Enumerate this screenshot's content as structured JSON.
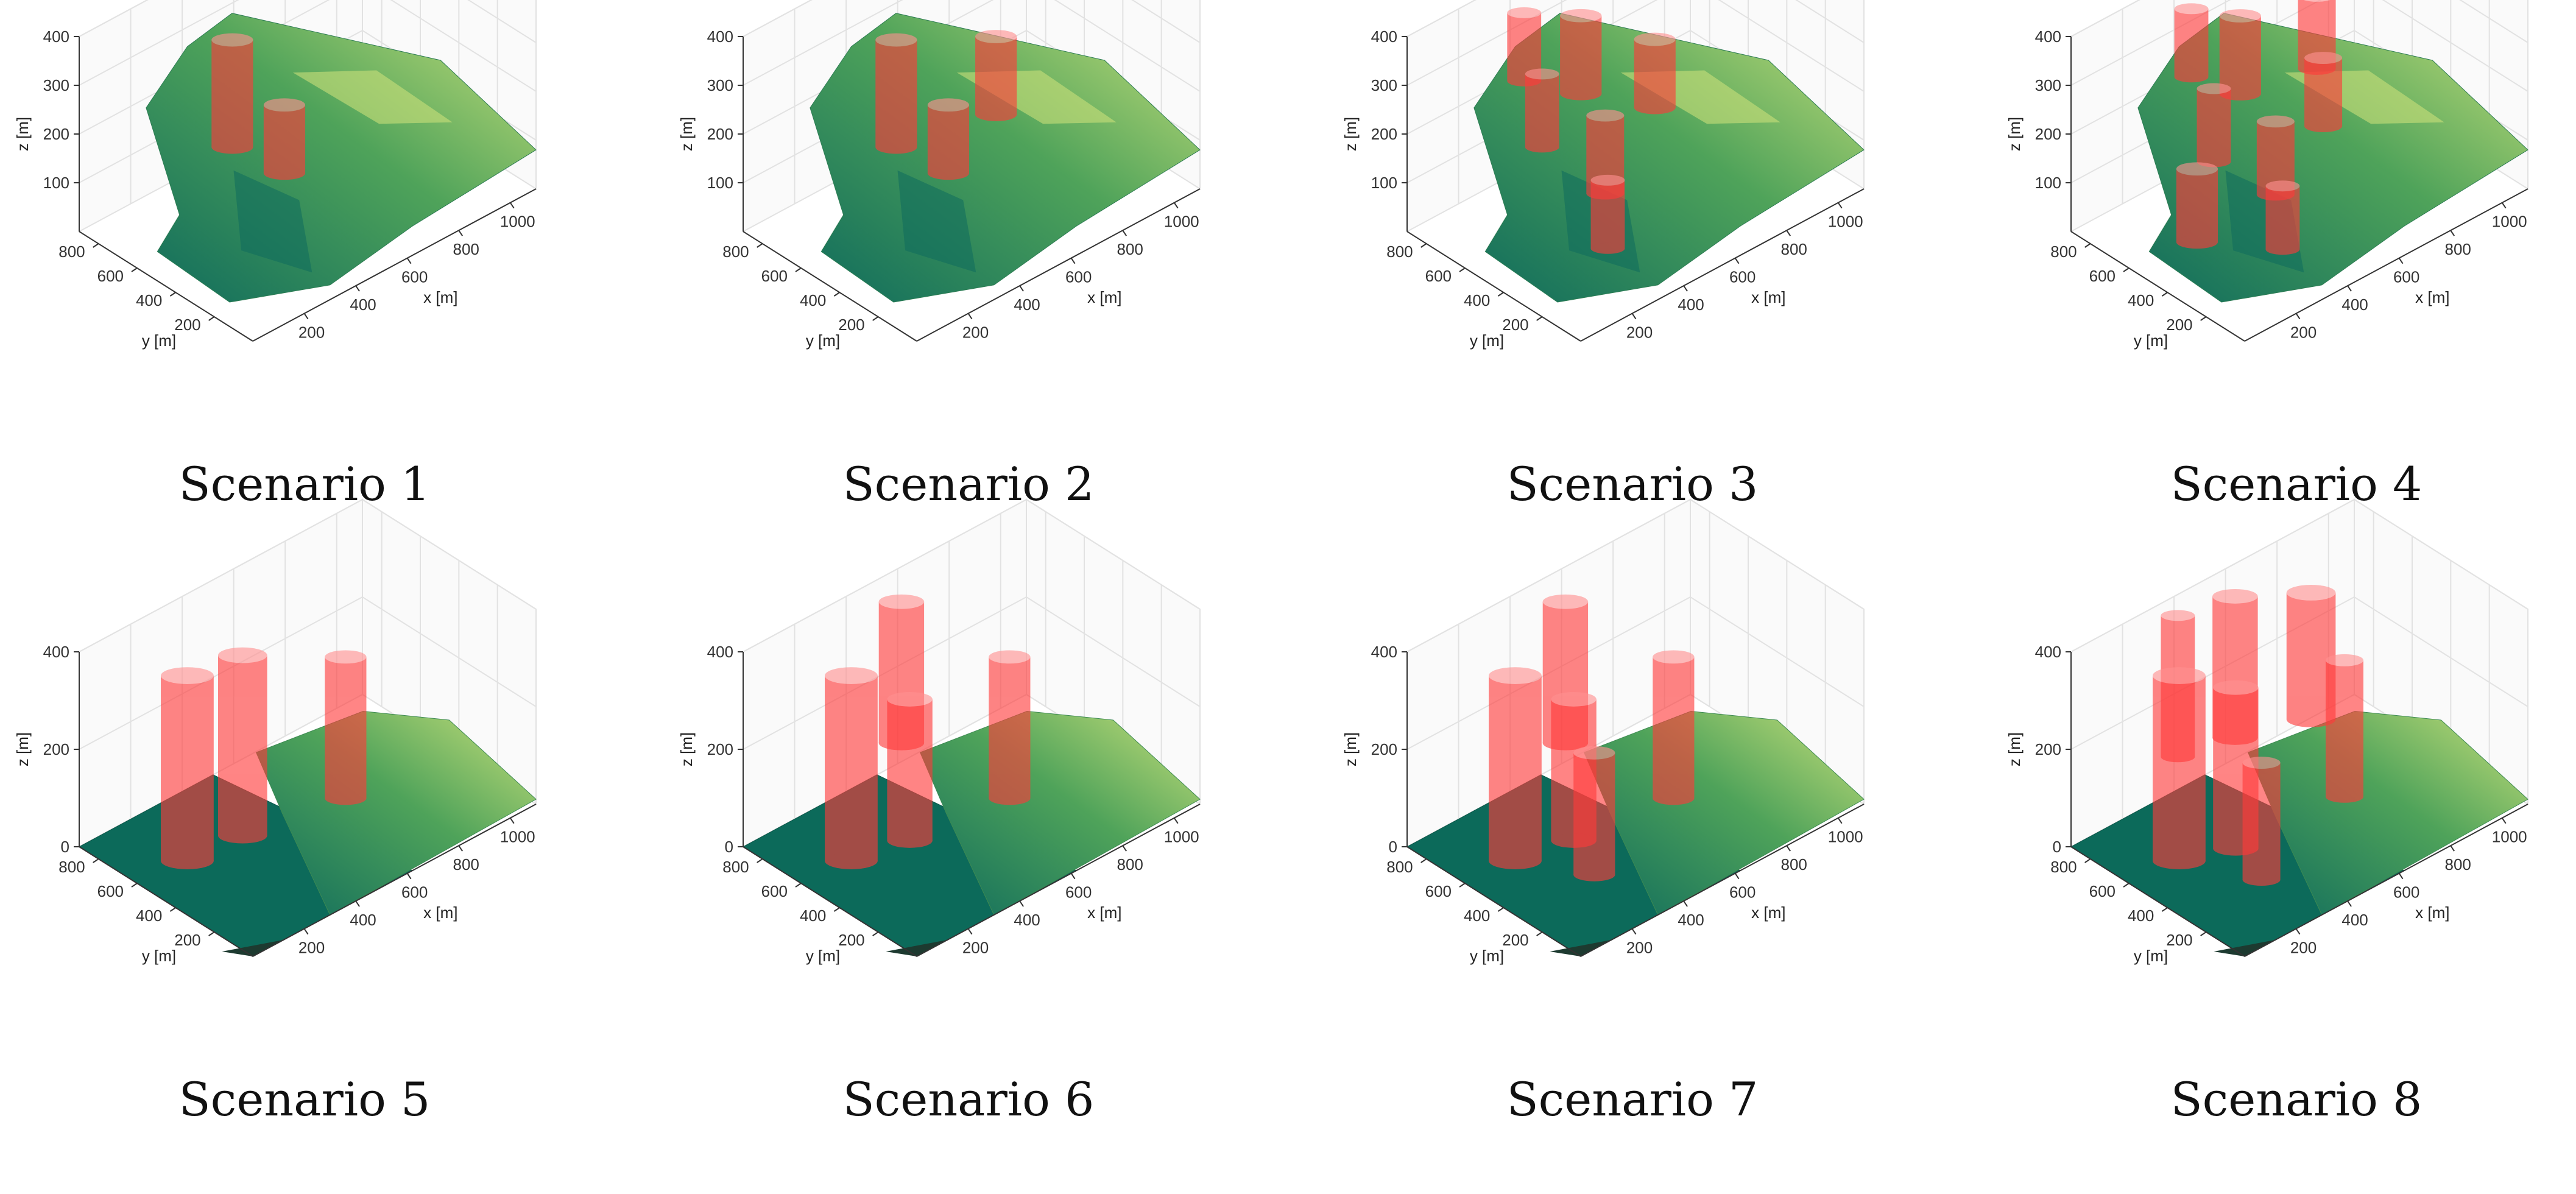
{
  "colors": {
    "terrain_dark": "#0f6b5c",
    "terrain_mid": "#4fa35a",
    "terrain_light": "#c9e07a",
    "flat_plane": "#0c6a5a",
    "cylinder": "#ff3a3a",
    "grid": "#e2e2e2",
    "axis": "#333333"
  },
  "chart_data": [
    {
      "type": "surface3d",
      "caption": "Scenario 1",
      "terrain": "hilly",
      "xlabel": "x [m]",
      "ylabel": "y [m]",
      "zlabel": "z [m]",
      "xticks": [
        200,
        400,
        600,
        800,
        1000
      ],
      "yticks": [
        200,
        400,
        600,
        800
      ],
      "zticks": [
        100,
        200,
        300,
        400
      ],
      "xlim": [
        0,
        1100
      ],
      "ylim": [
        0,
        900
      ],
      "zlim": [
        0,
        400
      ],
      "cylinders": [
        {
          "x": 310,
          "y": 520,
          "z0": 180,
          "z1": 400,
          "r": 55
        },
        {
          "x": 430,
          "y": 410,
          "z0": 120,
          "z1": 260,
          "r": 55
        }
      ]
    },
    {
      "type": "surface3d",
      "caption": "Scenario 2",
      "terrain": "hilly",
      "xlabel": "x [m]",
      "ylabel": "y [m]",
      "zlabel": "z [m]",
      "xticks": [
        200,
        400,
        600,
        800,
        1000
      ],
      "yticks": [
        200,
        400,
        600,
        800
      ],
      "zticks": [
        100,
        200,
        300,
        400
      ],
      "xlim": [
        0,
        1100
      ],
      "ylim": [
        0,
        900
      ],
      "zlim": [
        0,
        400
      ],
      "cylinders": [
        {
          "x": 310,
          "y": 520,
          "z0": 180,
          "z1": 400,
          "r": 55
        },
        {
          "x": 430,
          "y": 410,
          "z0": 120,
          "z1": 260,
          "r": 55
        },
        {
          "x": 660,
          "y": 470,
          "z0": 160,
          "z1": 320,
          "r": 55
        }
      ]
    },
    {
      "type": "surface3d",
      "caption": "Scenario 3",
      "terrain": "hilly",
      "xlabel": "x [m]",
      "ylabel": "y [m]",
      "zlabel": "z [m]",
      "xticks": [
        200,
        400,
        600,
        800,
        1000
      ],
      "yticks": [
        200,
        400,
        600,
        800
      ],
      "zticks": [
        100,
        200,
        300,
        400
      ],
      "xlim": [
        0,
        1100
      ],
      "ylim": [
        0,
        900
      ],
      "zlim": [
        0,
        400
      ],
      "cylinders": [
        {
          "x": 260,
          "y": 640,
          "z0": 300,
          "z1": 440,
          "r": 45
        },
        {
          "x": 240,
          "y": 520,
          "z0": 200,
          "z1": 350,
          "r": 45
        },
        {
          "x": 450,
          "y": 600,
          "z0": 230,
          "z1": 390,
          "r": 55
        },
        {
          "x": 640,
          "y": 470,
          "z0": 180,
          "z1": 320,
          "r": 55
        },
        {
          "x": 380,
          "y": 380,
          "z0": 100,
          "z1": 260,
          "r": 50
        },
        {
          "x": 300,
          "y": 260,
          "z0": 40,
          "z1": 180,
          "r": 45
        }
      ]
    },
    {
      "type": "surface3d",
      "caption": "Scenario 4",
      "terrain": "hilly",
      "xlabel": "x [m]",
      "ylabel": "y [m]",
      "zlabel": "z [m]",
      "xticks": [
        200,
        400,
        600,
        800,
        1000
      ],
      "yticks": [
        200,
        400,
        600,
        800
      ],
      "zticks": [
        100,
        200,
        300,
        400
      ],
      "xlim": [
        0,
        1100
      ],
      "ylim": [
        0,
        900
      ],
      "zlim": [
        0,
        400
      ],
      "cylinders": [
        {
          "x": 280,
          "y": 650,
          "z0": 300,
          "z1": 440,
          "r": 45
        },
        {
          "x": 440,
          "y": 610,
          "z0": 230,
          "z1": 390,
          "r": 55
        },
        {
          "x": 700,
          "y": 560,
          "z0": 220,
          "z1": 370,
          "r": 50
        },
        {
          "x": 240,
          "y": 480,
          "z0": 180,
          "z1": 330,
          "r": 45
        },
        {
          "x": 620,
          "y": 420,
          "z0": 160,
          "z1": 300,
          "r": 50
        },
        {
          "x": 100,
          "y": 380,
          "z0": 80,
          "z1": 230,
          "r": 55
        },
        {
          "x": 390,
          "y": 360,
          "z0": 100,
          "z1": 250,
          "r": 50
        },
        {
          "x": 320,
          "y": 230,
          "z0": 40,
          "z1": 170,
          "r": 45
        }
      ]
    },
    {
      "type": "surface3d",
      "caption": "Scenario 5",
      "terrain": "flat",
      "xlabel": "x [m]",
      "ylabel": "y [m]",
      "zlabel": "z [m]",
      "xticks": [
        200,
        400,
        600,
        800,
        1000
      ],
      "yticks": [
        200,
        400,
        600,
        800
      ],
      "zticks": [
        0,
        200,
        400
      ],
      "xlim": [
        0,
        1100
      ],
      "ylim": [
        0,
        900
      ],
      "zlim": [
        0,
        400
      ],
      "cylinders": [
        {
          "x": 180,
          "y": 580,
          "z0": 0,
          "z1": 380,
          "r": 70
        },
        {
          "x": 380,
          "y": 560,
          "z0": 0,
          "z1": 370,
          "r": 65
        },
        {
          "x": 720,
          "y": 480,
          "z0": 0,
          "z1": 290,
          "r": 55
        }
      ]
    },
    {
      "type": "surface3d",
      "caption": "Scenario 6",
      "terrain": "flat",
      "xlabel": "x [m]",
      "ylabel": "y [m]",
      "zlabel": "z [m]",
      "xticks": [
        200,
        400,
        600,
        800,
        1000
      ],
      "yticks": [
        200,
        400,
        600,
        800
      ],
      "zticks": [
        0,
        200,
        400
      ],
      "xlim": [
        0,
        1100
      ],
      "ylim": [
        0,
        900
      ],
      "zlim": [
        0,
        400
      ],
      "cylinders": [
        {
          "x": 180,
          "y": 580,
          "z0": 0,
          "z1": 380,
          "r": 70
        },
        {
          "x": 450,
          "y": 680,
          "z0": 140,
          "z1": 430,
          "r": 60
        },
        {
          "x": 370,
          "y": 530,
          "z0": 0,
          "z1": 290,
          "r": 60
        },
        {
          "x": 720,
          "y": 480,
          "z0": 0,
          "z1": 290,
          "r": 55
        }
      ]
    },
    {
      "type": "surface3d",
      "caption": "Scenario 7",
      "terrain": "flat",
      "xlabel": "x [m]",
      "ylabel": "y [m]",
      "zlabel": "z [m]",
      "xticks": [
        200,
        400,
        600,
        800,
        1000
      ],
      "yticks": [
        200,
        400,
        600,
        800
      ],
      "zticks": [
        0,
        200,
        400
      ],
      "xlim": [
        0,
        1100
      ],
      "ylim": [
        0,
        900
      ],
      "zlim": [
        0,
        400
      ],
      "cylinders": [
        {
          "x": 180,
          "y": 580,
          "z0": 0,
          "z1": 380,
          "r": 70
        },
        {
          "x": 450,
          "y": 680,
          "z0": 140,
          "z1": 430,
          "r": 60
        },
        {
          "x": 370,
          "y": 530,
          "z0": 0,
          "z1": 290,
          "r": 60
        },
        {
          "x": 300,
          "y": 330,
          "z0": 0,
          "z1": 250,
          "r": 55
        },
        {
          "x": 720,
          "y": 480,
          "z0": 0,
          "z1": 290,
          "r": 55
        }
      ]
    },
    {
      "type": "surface3d",
      "caption": "Scenario 8",
      "terrain": "flat",
      "xlabel": "x [m]",
      "ylabel": "y [m]",
      "zlabel": "z [m]",
      "xticks": [
        200,
        400,
        600,
        800,
        1000
      ],
      "yticks": [
        200,
        400,
        600,
        800
      ],
      "zticks": [
        0,
        200,
        400
      ],
      "xlim": [
        0,
        1100
      ],
      "ylim": [
        0,
        900
      ],
      "zlim": [
        0,
        400
      ],
      "cylinders": [
        {
          "x": 180,
          "y": 580,
          "z0": 0,
          "z1": 380,
          "r": 70
        },
        {
          "x": 280,
          "y": 720,
          "z0": 150,
          "z1": 440,
          "r": 45
        },
        {
          "x": 480,
          "y": 690,
          "z0": 140,
          "z1": 430,
          "r": 60
        },
        {
          "x": 700,
          "y": 590,
          "z0": 140,
          "z1": 400,
          "r": 65
        },
        {
          "x": 340,
          "y": 500,
          "z0": 0,
          "z1": 330,
          "r": 60
        },
        {
          "x": 740,
          "y": 470,
          "z0": 0,
          "z1": 280,
          "r": 50
        },
        {
          "x": 290,
          "y": 300,
          "z0": 0,
          "z1": 240,
          "r": 50
        }
      ]
    }
  ]
}
